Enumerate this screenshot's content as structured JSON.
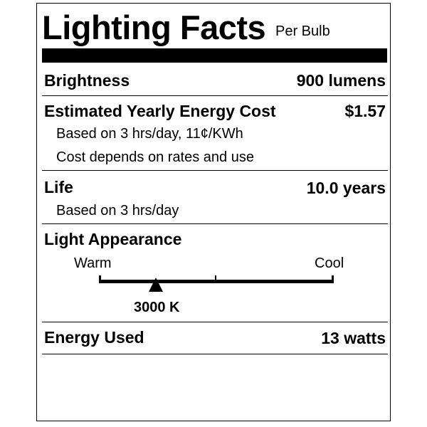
{
  "label": {
    "title": "Lighting Facts",
    "subtitle": "Per Bulb",
    "brightness": {
      "label": "Brightness",
      "value": "900 lumens"
    },
    "energy_cost": {
      "label": "Estimated Yearly Energy Cost",
      "value": "$1.57",
      "note1": "Based on 3 hrs/day, 11¢/KWh",
      "note2": "Cost depends on rates and use"
    },
    "life": {
      "label": "Life",
      "value": "10.0 years",
      "note": "Based on 3 hrs/day"
    },
    "light_appearance": {
      "label": "Light Appearance",
      "warm_label": "Warm",
      "cool_label": "Cool",
      "value": "3000 K",
      "marker_fraction": 0.24
    },
    "energy_used": {
      "label": "Energy Used",
      "value": "13 watts"
    }
  }
}
